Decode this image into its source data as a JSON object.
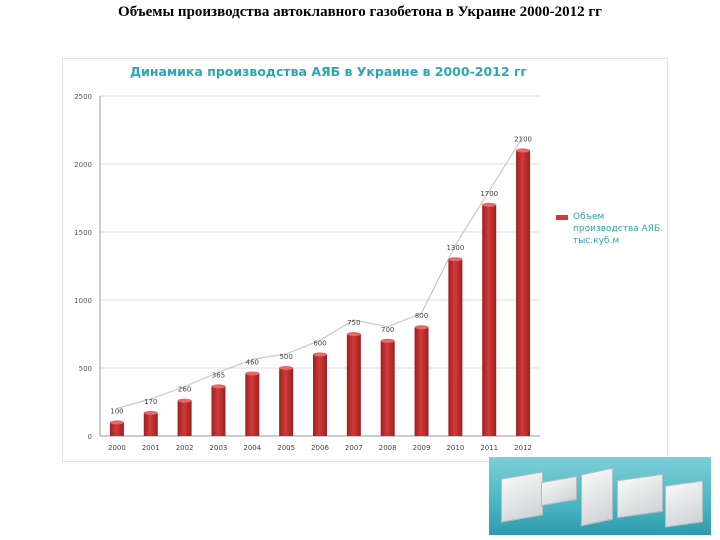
{
  "slide_title": "Объемы производства автоклавного газобетона в Украине 2000-2012 гг",
  "colors": {
    "bar": "#d23a3a",
    "bar_dark": "#9e1f1f",
    "title": "#2ba6b4",
    "line": "#c8c8c8"
  },
  "chart_data": {
    "type": "bar",
    "title": "Динамика производства АЯБ в Украине в 2000-2012 гг",
    "categories": [
      "2000",
      "2001",
      "2002",
      "2003",
      "2004",
      "2005",
      "2006",
      "2007",
      "2008",
      "2009",
      "2010",
      "2011",
      "2012"
    ],
    "series": [
      {
        "name": "Объем производства АЯБ. тыс.куб.м",
        "values": [
          100,
          170,
          260,
          365,
          460,
          500,
          600,
          750,
          700,
          800,
          1300,
          1700,
          2100
        ]
      }
    ],
    "data_labels": [
      "100",
      "170",
      "260",
      "365",
      "460",
      "500",
      "600",
      "750",
      "700",
      "800",
      "1300",
      "1700",
      "2100"
    ],
    "ylim": [
      0,
      2500
    ],
    "yticks": [
      0,
      500,
      1000,
      1500,
      2000,
      2500
    ],
    "grid": true,
    "legend": "right",
    "trend_line": true
  }
}
